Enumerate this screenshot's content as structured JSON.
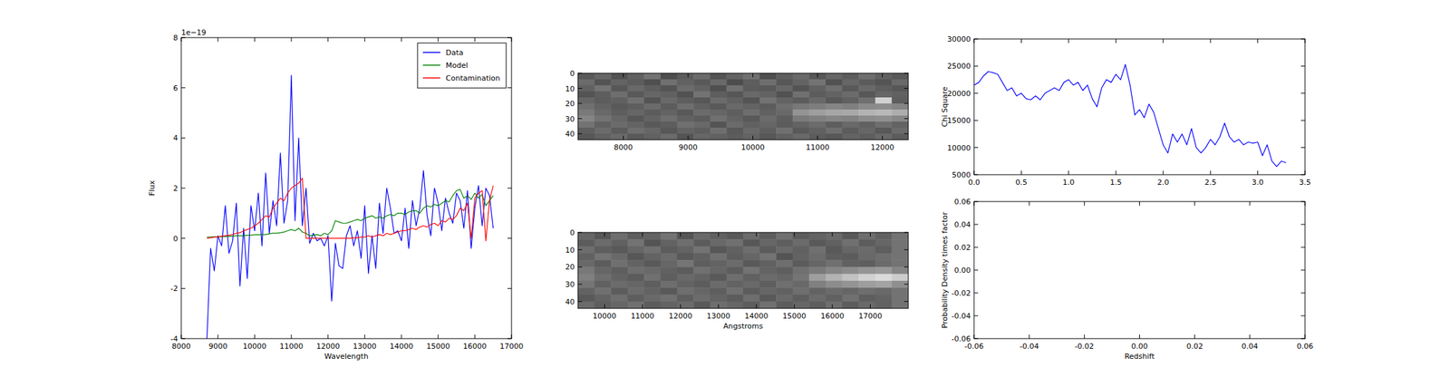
{
  "chart_data": [
    {
      "type": "line",
      "x_label": "Wavelength",
      "y_label": "Flux",
      "annotation": "1e−19",
      "xlim": [
        8000,
        17000
      ],
      "ylim": [
        -4,
        8
      ],
      "xticks": [
        8000,
        9000,
        10000,
        11000,
        12000,
        13000,
        14000,
        15000,
        16000,
        17000
      ],
      "yticks": [
        -4,
        -2,
        0,
        2,
        4,
        6,
        8
      ],
      "legend": "upper right",
      "x": [
        8700,
        8800,
        8900,
        9000,
        9100,
        9200,
        9300,
        9400,
        9500,
        9600,
        9700,
        9800,
        9900,
        10000,
        10100,
        10200,
        10300,
        10400,
        10500,
        10600,
        10700,
        10800,
        10900,
        11000,
        11100,
        11200,
        11300,
        11400,
        11500,
        11600,
        11700,
        11800,
        11900,
        12000,
        12100,
        12200,
        12300,
        12400,
        12500,
        12600,
        12700,
        12800,
        12900,
        13000,
        13100,
        13200,
        13300,
        13400,
        13500,
        13600,
        13700,
        13800,
        13900,
        14000,
        14100,
        14200,
        14300,
        14400,
        14500,
        14600,
        14700,
        14800,
        14900,
        15000,
        15100,
        15200,
        15300,
        15400,
        15500,
        15600,
        15700,
        15800,
        15900,
        16000,
        16100,
        16200,
        16300,
        16400,
        16500
      ],
      "series": [
        {
          "name": "Data",
          "color": "#0000ff",
          "values": [
            -4.0,
            -0.4,
            -1.3,
            0.1,
            -0.3,
            1.3,
            -0.6,
            -0.1,
            1.4,
            -1.9,
            0.4,
            -1.6,
            1.3,
            0.3,
            1.8,
            -0.3,
            2.6,
            0.2,
            1.5,
            0.5,
            3.4,
            0.6,
            1.5,
            6.5,
            0.7,
            4.0,
            0.5,
            2.0,
            -0.2,
            0.2,
            -0.1,
            0.0,
            -0.3,
            0.1,
            -2.5,
            -0.2,
            -1.1,
            -1.2,
            0.1,
            0.5,
            -0.3,
            0.3,
            -0.8,
            1.3,
            -1.4,
            0.1,
            -1.2,
            1.4,
            0.2,
            2.0,
            1.2,
            0.2,
            0.3,
            -0.1,
            1.2,
            -0.4,
            1.5,
            0.5,
            1.2,
            2.7,
            0.9,
            0.1,
            2.0,
            1.4,
            0.3,
            1.6,
            1.0,
            0.6,
            1.8,
            1.5,
            0.4,
            1.9,
            -0.4,
            1.2,
            2.1,
            0.5,
            2.0,
            1.7,
            0.4
          ]
        },
        {
          "name": "Model",
          "color": "#008000",
          "values": [
            0.05,
            0.05,
            0.06,
            0.06,
            0.07,
            0.07,
            0.08,
            0.08,
            0.1,
            0.1,
            0.1,
            0.12,
            0.12,
            0.14,
            0.14,
            0.15,
            0.15,
            0.18,
            0.2,
            0.2,
            0.22,
            0.25,
            0.3,
            0.35,
            0.3,
            0.4,
            0.25,
            0.2,
            0.1,
            0.12,
            0.15,
            0.1,
            0.2,
            0.15,
            0.3,
            0.7,
            0.65,
            0.6,
            0.6,
            0.65,
            0.7,
            0.75,
            0.7,
            0.8,
            0.85,
            0.9,
            0.8,
            0.85,
            0.8,
            0.9,
            0.95,
            0.9,
            1.0,
            1.0,
            0.95,
            1.05,
            1.1,
            1.1,
            1.0,
            1.2,
            1.3,
            1.25,
            1.35,
            1.3,
            1.4,
            1.5,
            1.45,
            1.7,
            1.9,
            1.95,
            1.6,
            1.7,
            1.55,
            1.8,
            1.6,
            1.75,
            1.3,
            1.5,
            1.7
          ]
        },
        {
          "name": "Contamination",
          "color": "#ff0000",
          "values": [
            0.0,
            0.02,
            0.05,
            0.05,
            0.08,
            0.1,
            0.12,
            0.15,
            0.2,
            0.22,
            0.3,
            0.35,
            0.4,
            0.5,
            0.6,
            0.75,
            0.9,
            0.85,
            1.2,
            1.4,
            1.6,
            1.5,
            1.8,
            2.0,
            2.1,
            2.2,
            2.4,
            0.0,
            0.0,
            0.0,
            0.0,
            0.0,
            0.0,
            0.0,
            0.0,
            0.0,
            0.0,
            0.0,
            0.0,
            0.0,
            0.02,
            0.02,
            0.05,
            0.05,
            0.1,
            0.05,
            0.1,
            0.15,
            0.1,
            0.2,
            0.15,
            0.2,
            0.25,
            0.3,
            0.3,
            0.35,
            0.4,
            0.35,
            0.45,
            0.5,
            0.45,
            0.55,
            0.6,
            0.5,
            0.7,
            0.65,
            0.8,
            0.75,
            0.9,
            1.2,
            1.1,
            1.4,
            0.0,
            1.6,
            1.8,
            1.9,
            -0.1,
            1.5,
            2.1
          ]
        }
      ]
    },
    {
      "type": "heatmap",
      "xlim": [
        7300,
        12400
      ],
      "ylim": [
        0,
        44
      ],
      "xticks": [
        8000,
        9000,
        10000,
        11000,
        12000
      ],
      "yticks": [
        0,
        10,
        20,
        30,
        40
      ],
      "cells": [
        [
          0.35,
          0.4,
          0.32,
          0.38,
          0.45,
          0.3,
          0.36,
          0.42,
          0.33,
          0.39,
          0.44,
          0.31,
          0.37,
          0.41,
          0.34,
          0.4,
          0.36,
          0.43,
          0.38,
          0.35
        ],
        [
          0.42,
          0.33,
          0.39,
          0.36,
          0.31,
          0.44,
          0.38,
          0.35,
          0.41,
          0.3,
          0.37,
          0.43,
          0.34,
          0.39,
          0.45,
          0.32,
          0.4,
          0.36,
          0.33,
          0.41
        ],
        [
          0.38,
          0.45,
          0.34,
          0.41,
          0.37,
          0.33,
          0.42,
          0.39,
          0.31,
          0.44,
          0.36,
          0.35,
          0.4,
          0.33,
          0.38,
          0.43,
          0.35,
          0.41,
          0.37,
          0.34
        ],
        [
          0.33,
          0.37,
          0.43,
          0.35,
          0.4,
          0.38,
          0.32,
          0.45,
          0.37,
          0.34,
          0.41,
          0.39,
          0.32,
          0.44,
          0.36,
          0.39,
          0.42,
          0.34,
          0.4,
          0.38
        ],
        [
          0.4,
          0.36,
          0.38,
          0.44,
          0.33,
          0.41,
          0.37,
          0.34,
          0.42,
          0.38,
          0.33,
          0.45,
          0.39,
          0.36,
          0.41,
          0.35,
          0.38,
          0.44,
          0.82,
          0.37
        ],
        [
          0.44,
          0.39,
          0.35,
          0.37,
          0.42,
          0.36,
          0.43,
          0.38,
          0.35,
          0.41,
          0.39,
          0.36,
          0.43,
          0.47,
          0.49,
          0.52,
          0.5,
          0.54,
          0.55,
          0.52
        ],
        [
          0.48,
          0.41,
          0.37,
          0.4,
          0.36,
          0.39,
          0.35,
          0.42,
          0.4,
          0.37,
          0.43,
          0.38,
          0.41,
          0.58,
          0.62,
          0.65,
          0.66,
          0.7,
          0.72,
          0.68
        ],
        [
          0.52,
          0.45,
          0.4,
          0.34,
          0.39,
          0.43,
          0.38,
          0.36,
          0.44,
          0.39,
          0.35,
          0.42,
          0.37,
          0.48,
          0.5,
          0.52,
          0.51,
          0.55,
          0.56,
          0.53
        ],
        [
          0.45,
          0.38,
          0.42,
          0.39,
          0.35,
          0.37,
          0.44,
          0.41,
          0.33,
          0.42,
          0.38,
          0.4,
          0.36,
          0.39,
          0.42,
          0.37,
          0.41,
          0.38,
          0.43,
          0.39
        ],
        [
          0.37,
          0.42,
          0.36,
          0.43,
          0.4,
          0.34,
          0.39,
          0.37,
          0.43,
          0.35,
          0.41,
          0.37,
          0.44,
          0.35,
          0.38,
          0.43,
          0.36,
          0.4,
          0.35,
          0.42
        ],
        [
          0.34,
          0.38,
          0.41,
          0.35,
          0.38,
          0.42,
          0.33,
          0.4,
          0.38,
          0.36,
          0.39,
          0.34,
          0.38,
          0.41,
          0.36,
          0.34,
          0.39,
          0.37,
          0.41,
          0.36
        ]
      ]
    },
    {
      "type": "heatmap",
      "x_label": "Angstroms",
      "xlim": [
        9300,
        18000
      ],
      "ylim": [
        0,
        44
      ],
      "xticks": [
        10000,
        11000,
        12000,
        13000,
        14000,
        15000,
        16000,
        17000
      ],
      "yticks": [
        0,
        10,
        20,
        30,
        40
      ],
      "cells": [
        [
          0.4,
          0.34,
          0.43,
          0.37,
          0.39,
          0.45,
          0.33,
          0.41,
          0.38,
          0.35,
          0.42,
          0.37,
          0.44,
          0.36,
          0.39,
          0.41,
          0.35,
          0.43,
          0.38,
          0.45
        ],
        [
          0.36,
          0.42,
          0.38,
          0.45,
          0.33,
          0.39,
          0.43,
          0.36,
          0.41,
          0.44,
          0.34,
          0.4,
          0.37,
          0.42,
          0.35,
          0.38,
          0.44,
          0.36,
          0.4,
          0.45
        ],
        [
          0.43,
          0.37,
          0.35,
          0.4,
          0.44,
          0.36,
          0.39,
          0.45,
          0.34,
          0.38,
          0.43,
          0.36,
          0.41,
          0.38,
          0.44,
          0.35,
          0.4,
          0.42,
          0.37,
          0.45
        ],
        [
          0.38,
          0.45,
          0.41,
          0.34,
          0.39,
          0.42,
          0.35,
          0.38,
          0.44,
          0.37,
          0.4,
          0.45,
          0.33,
          0.39,
          0.42,
          0.37,
          0.36,
          0.41,
          0.43,
          0.45
        ],
        [
          0.41,
          0.36,
          0.44,
          0.39,
          0.35,
          0.4,
          0.46,
          0.37,
          0.39,
          0.42,
          0.35,
          0.38,
          0.43,
          0.36,
          0.4,
          0.44,
          0.38,
          0.37,
          0.42,
          0.45
        ],
        [
          0.47,
          0.4,
          0.37,
          0.43,
          0.41,
          0.38,
          0.36,
          0.44,
          0.4,
          0.36,
          0.45,
          0.39,
          0.37,
          0.44,
          0.48,
          0.52,
          0.55,
          0.58,
          0.6,
          0.52
        ],
        [
          0.5,
          0.43,
          0.39,
          0.36,
          0.44,
          0.37,
          0.41,
          0.39,
          0.35,
          0.43,
          0.38,
          0.42,
          0.4,
          0.46,
          0.62,
          0.7,
          0.76,
          0.82,
          0.86,
          0.8
        ],
        [
          0.46,
          0.38,
          0.42,
          0.4,
          0.37,
          0.43,
          0.39,
          0.36,
          0.42,
          0.39,
          0.41,
          0.37,
          0.44,
          0.41,
          0.5,
          0.55,
          0.58,
          0.62,
          0.64,
          0.56
        ],
        [
          0.39,
          0.44,
          0.36,
          0.42,
          0.39,
          0.35,
          0.43,
          0.4,
          0.37,
          0.44,
          0.36,
          0.4,
          0.38,
          0.43,
          0.39,
          0.42,
          0.4,
          0.43,
          0.41,
          0.45
        ],
        [
          0.35,
          0.39,
          0.43,
          0.37,
          0.41,
          0.44,
          0.37,
          0.42,
          0.39,
          0.36,
          0.43,
          0.35,
          0.41,
          0.37,
          0.42,
          0.38,
          0.44,
          0.37,
          0.39,
          0.45
        ],
        [
          0.42,
          0.37,
          0.4,
          0.44,
          0.36,
          0.39,
          0.42,
          0.35,
          0.43,
          0.4,
          0.37,
          0.44,
          0.36,
          0.4,
          0.37,
          0.43,
          0.36,
          0.41,
          0.38,
          0.45
        ]
      ]
    },
    {
      "type": "line",
      "y_label": "Chi Square",
      "color": "#0000ff",
      "xlim": [
        0,
        3.5
      ],
      "ylim": [
        5000,
        30000
      ],
      "xticks": [
        {
          "value": 0,
          "label": "0.0"
        },
        0.5,
        {
          "value": 1,
          "label": "1.0"
        },
        1.5,
        {
          "value": 2,
          "label": "2.0"
        },
        2.5,
        {
          "value": 3,
          "label": "3.0"
        },
        3.5
      ],
      "yticks": [
        5000,
        10000,
        15000,
        20000,
        25000,
        30000
      ],
      "x": [
        0,
        0.05,
        0.1,
        0.15,
        0.2,
        0.25,
        0.3,
        0.35,
        0.4,
        0.45,
        0.5,
        0.55,
        0.6,
        0.65,
        0.7,
        0.75,
        0.8,
        0.85,
        0.9,
        0.95,
        1.0,
        1.05,
        1.1,
        1.15,
        1.2,
        1.25,
        1.3,
        1.35,
        1.4,
        1.45,
        1.5,
        1.55,
        1.6,
        1.65,
        1.7,
        1.75,
        1.8,
        1.85,
        1.9,
        1.95,
        2.0,
        2.05,
        2.1,
        2.15,
        2.2,
        2.25,
        2.3,
        2.35,
        2.4,
        2.45,
        2.5,
        2.55,
        2.6,
        2.65,
        2.7,
        2.75,
        2.8,
        2.85,
        2.9,
        2.95,
        3.0,
        3.05,
        3.1,
        3.15,
        3.2,
        3.25,
        3.3
      ],
      "values": [
        21500,
        22000,
        23200,
        24000,
        23800,
        23500,
        22000,
        20500,
        21000,
        19500,
        20000,
        19000,
        18800,
        19500,
        18800,
        20000,
        20500,
        21000,
        20500,
        22000,
        22500,
        21500,
        22000,
        20500,
        21500,
        19000,
        17500,
        21000,
        22500,
        22000,
        23500,
        22500,
        25300,
        21500,
        16000,
        17000,
        15500,
        18000,
        16500,
        13500,
        10500,
        9000,
        12500,
        11000,
        12500,
        10500,
        13500,
        10000,
        9000,
        10000,
        11500,
        10500,
        12000,
        14500,
        12000,
        11000,
        11500,
        10500,
        11000,
        10800,
        11000,
        8500,
        10500,
        7500,
        6500,
        7500,
        7200
      ]
    },
    {
      "type": "line",
      "x_label": "Redshift",
      "y_label": "Probability Density times factor",
      "color": "#0000ff",
      "xlim": [
        -0.06,
        0.06
      ],
      "ylim": [
        -0.06,
        0.06
      ],
      "xticks": [
        -0.06,
        -0.04,
        -0.02,
        {
          "value": 0,
          "label": "0.00"
        },
        0.02,
        0.04,
        0.06
      ],
      "yticks": [
        -0.06,
        -0.04,
        -0.02,
        {
          "value": 0,
          "label": "0.00"
        },
        0.02,
        0.04,
        0.06
      ],
      "x": [],
      "values": []
    }
  ]
}
